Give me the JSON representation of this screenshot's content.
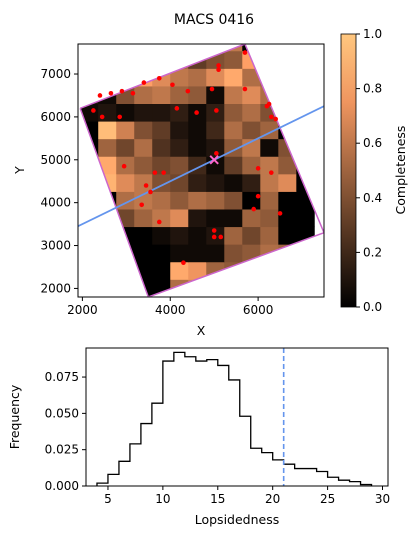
{
  "chart_data": [
    {
      "type": "heatmap",
      "title": "MACS 0416",
      "xlabel": "X",
      "ylabel": "Y",
      "xlim": [
        1900,
        7500
      ],
      "ylim": [
        1800,
        7700
      ],
      "xticks": [
        2000,
        4000,
        6000
      ],
      "yticks": [
        2000,
        3000,
        4000,
        5000,
        6000,
        7000
      ],
      "colorbar": {
        "label": "Completeness",
        "range": [
          0.0,
          1.0
        ],
        "ticks": [
          "0.0",
          "0.2",
          "0.4",
          "0.6",
          "0.8",
          "1.0"
        ],
        "colormap": "copper",
        "color_low": "#000000",
        "color_high": "#ffc77f"
      },
      "grid": {
        "x0": 1950,
        "y0": 1800,
        "cell": 410,
        "cols": 13,
        "rows": 15,
        "values": [
          [
            0.0,
            0.0,
            0.0,
            0.0,
            0.0,
            0.55,
            0.65,
            0.6,
            0.5,
            0.45,
            0.4,
            0.45,
            0.4
          ],
          [
            0.0,
            0.0,
            0.0,
            0.0,
            0.0,
            0.85,
            0.75,
            0.5,
            0.45,
            0.5,
            0.45,
            0.4,
            0.0
          ],
          [
            0.0,
            0.0,
            0.0,
            0.0,
            0.0,
            0.05,
            0.05,
            0.05,
            0.4,
            0.45,
            0.55,
            0.5,
            0.0
          ],
          [
            0.0,
            0.0,
            0.0,
            0.0,
            0.05,
            0.1,
            0.05,
            0.1,
            0.5,
            0.35,
            0.5,
            0.0,
            0.0
          ],
          [
            0.0,
            0.0,
            0.35,
            0.5,
            0.6,
            0.7,
            0.1,
            0.05,
            0.05,
            0.5,
            0.45,
            0.0,
            0.0
          ],
          [
            0.0,
            0.0,
            0.55,
            0.6,
            0.55,
            0.45,
            0.55,
            0.5,
            0.4,
            0.0,
            0.5,
            0.0,
            0.0
          ],
          [
            0.0,
            0.9,
            0.7,
            0.6,
            0.4,
            0.35,
            0.15,
            0.1,
            0.05,
            0.15,
            0.6,
            0.7,
            0.0
          ],
          [
            0.0,
            0.85,
            0.55,
            0.45,
            0.35,
            0.4,
            0.2,
            0.05,
            0.3,
            0.5,
            0.6,
            0.45,
            0.0
          ],
          [
            0.0,
            0.5,
            0.35,
            0.55,
            0.25,
            0.15,
            0.05,
            0.1,
            0.45,
            0.6,
            0.05,
            0.4,
            0.0
          ],
          [
            0.0,
            0.95,
            0.65,
            0.4,
            0.3,
            0.1,
            0.05,
            0.2,
            0.55,
            0.4,
            0.5,
            0.0,
            0.0
          ],
          [
            0.05,
            0.1,
            0.05,
            0.1,
            0.1,
            0.15,
            0.05,
            0.15,
            0.45,
            0.55,
            0.4,
            0.5,
            0.0
          ],
          [
            0.1,
            0.05,
            0.4,
            0.55,
            0.6,
            0.5,
            0.45,
            0.05,
            0.6,
            0.7,
            0.55,
            0.0,
            0.0
          ],
          [
            0.0,
            0.5,
            0.65,
            0.8,
            0.7,
            0.6,
            0.55,
            0.7,
            0.85,
            0.55,
            0.5,
            0.0,
            0.0
          ],
          [
            0.0,
            0.0,
            0.0,
            0.4,
            0.4,
            0.5,
            0.3,
            0.4,
            0.45,
            0.8,
            0.0,
            0.0,
            0.0
          ],
          [
            0.0,
            0.0,
            0.0,
            0.0,
            0.0,
            0.3,
            0.2,
            0.45,
            0.6,
            0.0,
            0.0,
            0.0,
            0.0
          ]
        ]
      },
      "footprint": [
        [
          1950,
          6200
        ],
        [
          5700,
          7700
        ],
        [
          7500,
          3300
        ],
        [
          3500,
          1800
        ],
        [
          1950,
          6200
        ]
      ],
      "footprint_color": "#cc66cc",
      "axis_line": [
        [
          1900,
          3450
        ],
        [
          7500,
          6250
        ]
      ],
      "axis_line_color": "#6495ed",
      "center": [
        5000,
        5000
      ],
      "center_color": "#ff66cc",
      "points": [
        [
          2250,
          6150
        ],
        [
          2450,
          6000
        ],
        [
          2850,
          6000
        ],
        [
          2400,
          6500
        ],
        [
          2650,
          6550
        ],
        [
          2900,
          6600
        ],
        [
          3150,
          6550
        ],
        [
          3400,
          6800
        ],
        [
          3750,
          6900
        ],
        [
          4050,
          6750
        ],
        [
          4400,
          6600
        ],
        [
          4950,
          6650
        ],
        [
          5100,
          7100
        ],
        [
          5100,
          7200
        ],
        [
          4150,
          6200
        ],
        [
          4600,
          6100
        ],
        [
          5050,
          6150
        ],
        [
          5700,
          6650
        ],
        [
          6200,
          6250
        ],
        [
          6250,
          6300
        ],
        [
          6300,
          6000
        ],
        [
          6400,
          5950
        ],
        [
          2950,
          4850
        ],
        [
          3450,
          4400
        ],
        [
          3650,
          4700
        ],
        [
          3550,
          4250
        ],
        [
          3750,
          3550
        ],
        [
          3850,
          4700
        ],
        [
          5050,
          5150
        ],
        [
          6000,
          4800
        ],
        [
          6000,
          4150
        ],
        [
          6300,
          4700
        ],
        [
          5900,
          3850
        ],
        [
          6500,
          3750
        ],
        [
          5000,
          3350
        ],
        [
          5000,
          3200
        ],
        [
          5150,
          3200
        ],
        [
          4300,
          2600
        ],
        [
          3350,
          3950
        ],
        [
          5700,
          7500
        ]
      ],
      "point_color": "#ff0000"
    },
    {
      "type": "bar",
      "xlabel": "Lopsidedness",
      "ylabel": "Frequency",
      "xlim": [
        3,
        30.5
      ],
      "ylim": [
        0,
        0.095
      ],
      "xticks": [
        5,
        10,
        15,
        20,
        25,
        30
      ],
      "yticks": [
        "0.000",
        "0.025",
        "0.050",
        "0.075"
      ],
      "bin_edges": [
        4,
        5,
        6,
        7,
        8,
        9,
        10,
        11,
        12,
        13,
        14,
        15,
        16,
        17,
        18,
        19,
        20,
        21,
        22,
        23,
        24,
        25,
        26,
        27,
        28,
        29
      ],
      "values": [
        0.002,
        0.008,
        0.017,
        0.029,
        0.043,
        0.057,
        0.086,
        0.092,
        0.089,
        0.086,
        0.087,
        0.083,
        0.073,
        0.048,
        0.026,
        0.023,
        0.018,
        0.015,
        0.012,
        0.012,
        0.01,
        0.006,
        0.004,
        0.003,
        0.001
      ],
      "vline": 21,
      "vline_color": "#6495ed"
    }
  ]
}
